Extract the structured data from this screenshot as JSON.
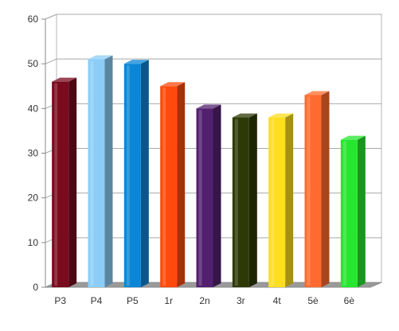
{
  "chart_data": {
    "type": "bar",
    "categories": [
      "P3",
      "P4",
      "P5",
      "1r",
      "2n",
      "3r",
      "4t",
      "5è",
      "6è"
    ],
    "values": [
      46,
      51,
      50,
      45,
      40,
      38,
      38,
      43,
      33
    ],
    "ylim": [
      0,
      60
    ],
    "yticks": [
      0,
      10,
      20,
      30,
      40,
      50,
      60
    ],
    "grid": true,
    "legend": "none",
    "title": "",
    "xlabel": "",
    "ylabel": "",
    "colors": [
      "#7a0a1e",
      "#8ccdf7",
      "#0a86d6",
      "#ff4a0d",
      "#53206f",
      "#2d3a06",
      "#ffde21",
      "#ff6b2e",
      "#27e62f"
    ]
  }
}
